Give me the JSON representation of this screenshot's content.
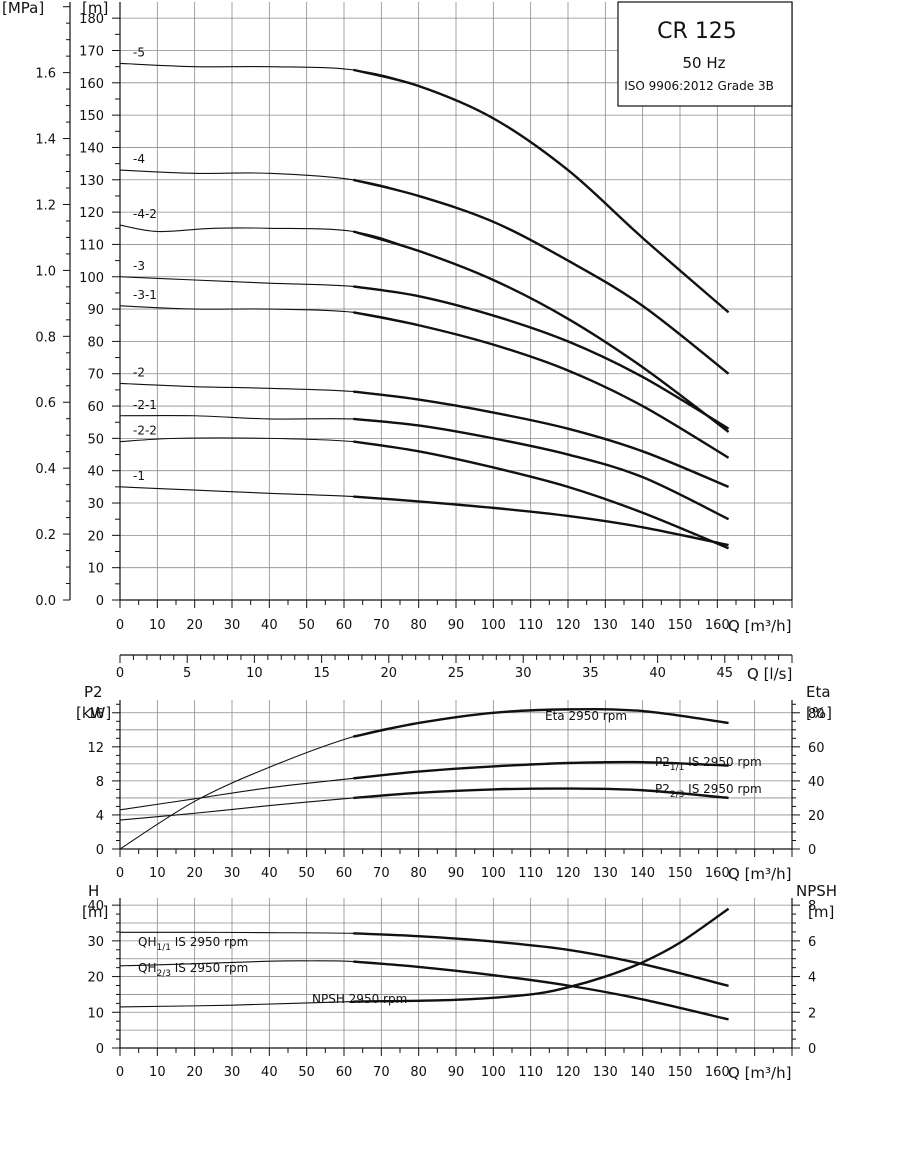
{
  "title_box": {
    "model": "CR 125",
    "frequency": "50 Hz",
    "standard": "ISO 9906:2012 Grade 3B"
  },
  "chart_data": [
    {
      "type": "line",
      "name": "head-curves",
      "units": {
        "left_outer": "[MPa]",
        "left_inner": "[m]",
        "x_m3h": "Q [m³/h]",
        "x_ls": "Q [l/s]"
      },
      "x_ticks_m3h": [
        0,
        10,
        20,
        30,
        40,
        50,
        60,
        70,
        80,
        90,
        100,
        110,
        120,
        130,
        140,
        150,
        160
      ],
      "x_ticks_ls": [
        0,
        5,
        10,
        15,
        20,
        25,
        30,
        35,
        40,
        45
      ],
      "y_ticks_m": [
        0,
        10,
        20,
        30,
        40,
        50,
        60,
        70,
        80,
        90,
        100,
        110,
        120,
        130,
        140,
        150,
        160,
        170,
        180
      ],
      "y_ticks_mpa": [
        "0.0",
        "0.2",
        "0.4",
        "0.6",
        "0.8",
        "1.0",
        "1.2",
        "1.4",
        "1.6"
      ],
      "xlim": [
        0,
        180
      ],
      "ylim": [
        0,
        185
      ],
      "series": [
        {
          "name": "-5",
          "x": [
            0,
            20,
            40,
            62.5,
            80,
            100,
            120,
            140,
            163
          ],
          "y": [
            166,
            165,
            165,
            164,
            159,
            149,
            133,
            112,
            89
          ]
        },
        {
          "name": "-4",
          "x": [
            0,
            20,
            40,
            62.5,
            80,
            100,
            120,
            140,
            163
          ],
          "y": [
            133,
            132,
            132,
            130,
            125,
            117,
            105,
            91,
            70
          ]
        },
        {
          "name": "-4-2",
          "x": [
            0,
            10,
            25,
            40,
            62.5,
            80,
            100,
            120,
            140,
            163
          ],
          "y": [
            116,
            114,
            115,
            115,
            114,
            108,
            99,
            87,
            72,
            52
          ]
        },
        {
          "name": "-3",
          "x": [
            0,
            20,
            40,
            62.5,
            80,
            100,
            120,
            140,
            163
          ],
          "y": [
            100,
            99,
            98,
            97,
            94,
            88,
            80,
            69,
            53
          ]
        },
        {
          "name": "-3-1",
          "x": [
            0,
            20,
            40,
            62.5,
            80,
            100,
            120,
            140,
            163
          ],
          "y": [
            91,
            90,
            90,
            89,
            85,
            79,
            71,
            60,
            44
          ]
        },
        {
          "name": "-2",
          "x": [
            0,
            20,
            40,
            62.5,
            80,
            100,
            120,
            140,
            163
          ],
          "y": [
            67,
            66,
            65.5,
            64.5,
            62,
            58,
            53,
            46,
            35
          ]
        },
        {
          "name": "-2-1",
          "x": [
            0,
            20,
            40,
            62.5,
            80,
            100,
            120,
            140,
            163
          ],
          "y": [
            57,
            57,
            56,
            56,
            54,
            50,
            45,
            38,
            25
          ]
        },
        {
          "name": "-2-2",
          "x": [
            0,
            15,
            40,
            62.5,
            80,
            100,
            120,
            140,
            163
          ],
          "y": [
            49,
            50,
            50,
            49,
            46,
            41,
            35,
            27,
            16
          ]
        },
        {
          "name": "-1",
          "x": [
            0,
            20,
            40,
            62.5,
            80,
            100,
            120,
            140,
            163
          ],
          "y": [
            35,
            34,
            33,
            32,
            30.5,
            28.5,
            26,
            22.5,
            17
          ]
        }
      ],
      "highlight_from_x": 62.5
    },
    {
      "type": "line",
      "name": "power-efficiency",
      "units": {
        "left_top": "P2",
        "left": "[kW]",
        "right_top": "Eta",
        "right": "[%]",
        "x": "Q [m³/h]"
      },
      "y_ticks_kw": [
        0,
        4,
        8,
        12,
        16
      ],
      "y_ticks_eta": [
        0,
        20,
        40,
        60,
        80
      ],
      "ylim_kw": [
        0,
        17.5
      ],
      "series": [
        {
          "name": "Eta 2950 rpm",
          "axis": "eta",
          "x": [
            0,
            20,
            40,
            62.5,
            80,
            100,
            120,
            140,
            163
          ],
          "y": [
            0,
            28,
            48,
            66,
            74,
            80,
            82,
            81,
            74
          ]
        },
        {
          "name": "P2 1/1 IS 2950 rpm",
          "axis": "kw",
          "x": [
            0,
            20,
            40,
            62.5,
            80,
            100,
            120,
            140,
            163
          ],
          "y": [
            4.6,
            5.9,
            7.2,
            8.3,
            9.1,
            9.7,
            10.1,
            10.2,
            9.8
          ]
        },
        {
          "name": "P2 2/3 IS 2950 rpm",
          "axis": "kw",
          "x": [
            0,
            20,
            40,
            62.5,
            80,
            100,
            120,
            140,
            163
          ],
          "y": [
            3.4,
            4.2,
            5.1,
            6,
            6.6,
            7,
            7.1,
            6.9,
            6
          ]
        }
      ],
      "labels": {
        "eta": "Eta 2950 rpm",
        "p2_full_main": "P2",
        "p2_full_sub": "1/1",
        "p2_full_rest": " IS 2950 rpm",
        "p2_23_main": "P2",
        "p2_23_sub": "2/3",
        "p2_23_rest": " IS 2950 rpm"
      }
    },
    {
      "type": "line",
      "name": "head-npsh",
      "units": {
        "left_top": "H",
        "left": "[m]",
        "right_top": "NPSH",
        "right": "[m]",
        "x": "Q [m³/h]"
      },
      "y_ticks_h": [
        0,
        10,
        20,
        30,
        40
      ],
      "y_ticks_npsh": [
        0,
        2,
        4,
        6,
        8
      ],
      "ylim_h": [
        0,
        42
      ],
      "series": [
        {
          "name": "QH 1/1 IS 2950 rpm",
          "axis": "h",
          "x": [
            0,
            20,
            40,
            62.5,
            80,
            100,
            120,
            140,
            163
          ],
          "y": [
            32.4,
            32.4,
            32.3,
            32.1,
            31.3,
            29.8,
            27.5,
            23.5,
            17.4
          ]
        },
        {
          "name": "QH 2/3 IS 2950 rpm",
          "axis": "h",
          "x": [
            0,
            20,
            40,
            50,
            62.5,
            80,
            100,
            120,
            140,
            163
          ],
          "y": [
            23,
            23.6,
            24.3,
            24.4,
            24.2,
            22.7,
            20.4,
            17.5,
            13.6,
            8
          ]
        },
        {
          "name": "NPSH 2950 rpm",
          "axis": "npsh",
          "x": [
            0,
            30,
            62.5,
            90,
            110,
            120,
            130,
            140,
            150,
            163
          ],
          "y": [
            2.3,
            2.4,
            2.6,
            2.7,
            3,
            3.4,
            4,
            4.8,
            5.9,
            7.8
          ]
        }
      ],
      "labels": {
        "qh_full_main": "QH",
        "qh_full_sub": "1/1",
        "qh_full_rest": " IS 2950 rpm",
        "qh_23_main": "QH",
        "qh_23_sub": "2/3",
        "qh_23_rest": " IS 2950 rpm",
        "npsh": "NPSH 2950 rpm"
      }
    }
  ]
}
